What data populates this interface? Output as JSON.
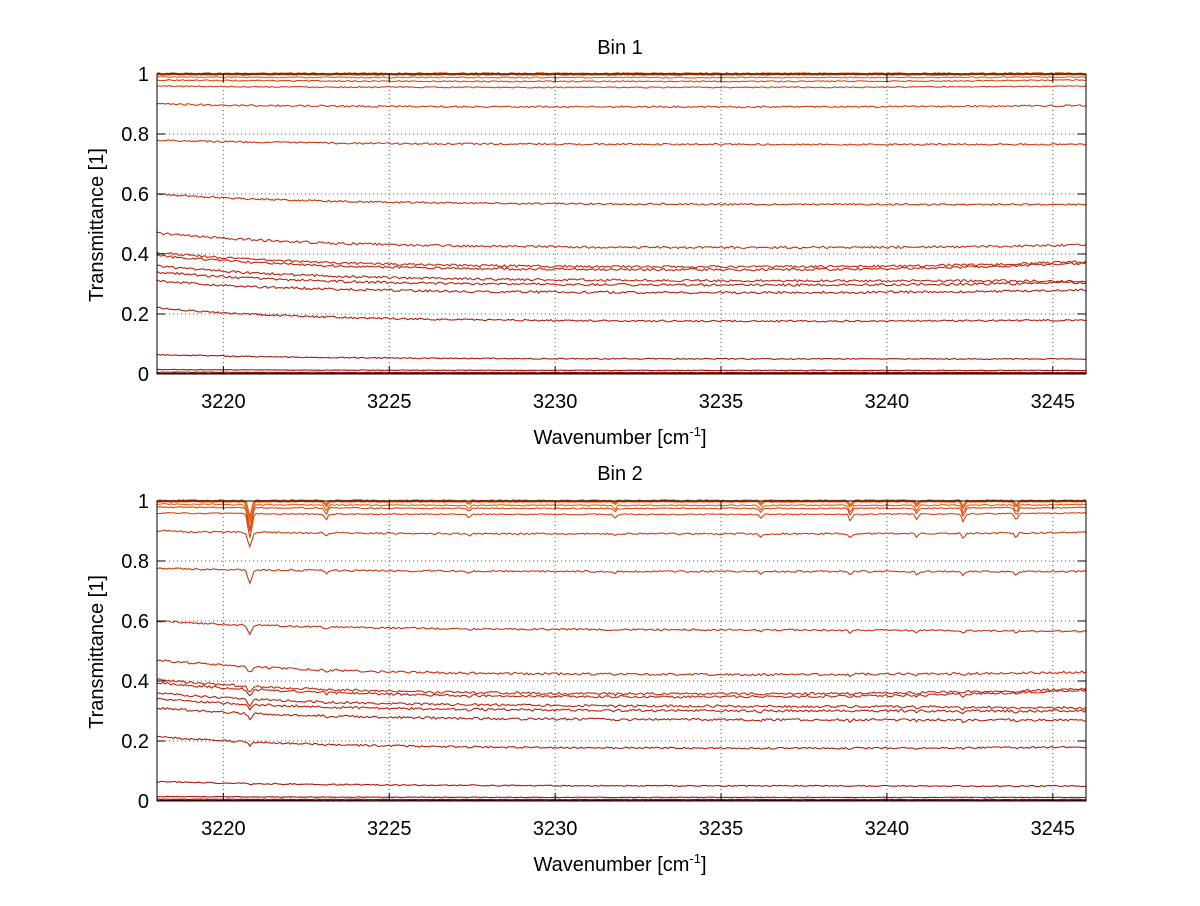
{
  "figure": {
    "background": "#ffffff"
  },
  "chart_data": [
    {
      "type": "line",
      "title": "Bin 1",
      "xlabel": "Wavenumber [cm",
      "xlabel_superscript": "-1",
      "xlabel_suffix": "]",
      "ylabel": "Transmittance [1]",
      "xlim": [
        3218,
        3246
      ],
      "ylim": [
        0,
        1
      ],
      "xticks": [
        3220,
        3225,
        3230,
        3235,
        3240,
        3245
      ],
      "xtick_labels": [
        "3220",
        "3225",
        "3230",
        "3235",
        "3240",
        "3245"
      ],
      "yticks": [
        0,
        0.2,
        0.4,
        0.6,
        0.8,
        1
      ],
      "ytick_labels": [
        "0",
        "0.2",
        "0.4",
        "0.6",
        "0.8",
        "1"
      ],
      "grid": true,
      "absorption_lines": [],
      "series": [
        {
          "color": "#e85a18",
          "start": 1.0,
          "mid": 1.0,
          "end": 1.0,
          "depth": 0.0,
          "noise": 0.002
        },
        {
          "color": "#f07020",
          "start": 0.998,
          "mid": 0.997,
          "end": 0.998,
          "depth": 0.0,
          "noise": 0.002
        },
        {
          "color": "#e0601a",
          "start": 0.99,
          "mid": 0.988,
          "end": 0.99,
          "depth": 0.0,
          "noise": 0.002
        },
        {
          "color": "#d44a14",
          "start": 0.98,
          "mid": 0.975,
          "end": 0.98,
          "depth": 0.0,
          "noise": 0.002
        },
        {
          "color": "#d44414",
          "start": 0.96,
          "mid": 0.955,
          "end": 0.96,
          "depth": 0.0,
          "noise": 0.002
        },
        {
          "color": "#cc3c12",
          "start": 0.9,
          "mid": 0.89,
          "end": 0.895,
          "depth": 0.0,
          "noise": 0.003
        },
        {
          "color": "#c83812",
          "start": 0.78,
          "mid": 0.765,
          "end": 0.765,
          "depth": 0.0,
          "noise": 0.003
        },
        {
          "color": "#c43210",
          "start": 0.6,
          "mid": 0.565,
          "end": 0.565,
          "depth": 0.0,
          "noise": 0.003
        },
        {
          "color": "#c22e10",
          "start": 0.47,
          "mid": 0.42,
          "end": 0.43,
          "depth": 0.0,
          "noise": 0.004
        },
        {
          "color": "#c02a0e",
          "start": 0.405,
          "mid": 0.355,
          "end": 0.375,
          "depth": 0.0,
          "noise": 0.004
        },
        {
          "color": "#bc260e",
          "start": 0.395,
          "mid": 0.345,
          "end": 0.37,
          "depth": 0.0,
          "noise": 0.004
        },
        {
          "color": "#ba240e",
          "start": 0.36,
          "mid": 0.31,
          "end": 0.31,
          "depth": 0.0,
          "noise": 0.004
        },
        {
          "color": "#b6220c",
          "start": 0.34,
          "mid": 0.295,
          "end": 0.305,
          "depth": 0.0,
          "noise": 0.004
        },
        {
          "color": "#b4200c",
          "start": 0.31,
          "mid": 0.27,
          "end": 0.28,
          "depth": 0.0,
          "noise": 0.004
        },
        {
          "color": "#b01e0c",
          "start": 0.22,
          "mid": 0.175,
          "end": 0.18,
          "depth": 0.0,
          "noise": 0.003
        },
        {
          "color": "#a81a0a",
          "start": 0.065,
          "mid": 0.05,
          "end": 0.05,
          "depth": 0.0,
          "noise": 0.002
        },
        {
          "color": "#a0160a",
          "start": 0.015,
          "mid": 0.012,
          "end": 0.012,
          "depth": 0.0,
          "noise": 0.001
        },
        {
          "color": "#8a1008",
          "start": 0.006,
          "mid": 0.005,
          "end": 0.005,
          "depth": 0.0,
          "noise": 0.001
        },
        {
          "color": "#7a0c06",
          "start": 0.002,
          "mid": 0.002,
          "end": 0.002,
          "depth": 0.0,
          "noise": 0.001
        }
      ]
    },
    {
      "type": "line",
      "title": "Bin 2",
      "xlabel": "Wavenumber [cm",
      "xlabel_superscript": "-1",
      "xlabel_suffix": "]",
      "ylabel": "Transmittance [1]",
      "xlim": [
        3218,
        3246
      ],
      "ylim": [
        0,
        1
      ],
      "xticks": [
        3220,
        3225,
        3230,
        3235,
        3240,
        3245
      ],
      "xtick_labels": [
        "3220",
        "3225",
        "3230",
        "3235",
        "3240",
        "3245"
      ],
      "yticks": [
        0,
        0.2,
        0.4,
        0.6,
        0.8,
        1
      ],
      "ytick_labels": [
        "0",
        "0.2",
        "0.4",
        "0.6",
        "0.8",
        "1"
      ],
      "grid": true,
      "absorption_lines": [
        {
          "x": 3220.8,
          "strength": 1.0,
          "width": 0.08
        },
        {
          "x": 3223.1,
          "strength": 0.25,
          "width": 0.06
        },
        {
          "x": 3227.4,
          "strength": 0.15,
          "width": 0.06
        },
        {
          "x": 3231.8,
          "strength": 0.15,
          "width": 0.06
        },
        {
          "x": 3236.2,
          "strength": 0.18,
          "width": 0.06
        },
        {
          "x": 3238.9,
          "strength": 0.3,
          "width": 0.06
        },
        {
          "x": 3240.9,
          "strength": 0.22,
          "width": 0.06
        },
        {
          "x": 3242.3,
          "strength": 0.35,
          "width": 0.06
        },
        {
          "x": 3243.9,
          "strength": 0.3,
          "width": 0.06
        }
      ],
      "series": [
        {
          "color": "#e85a18",
          "start": 1.0,
          "mid": 1.0,
          "end": 1.0,
          "depth": 0.06,
          "noise": 0.002
        },
        {
          "color": "#f07020",
          "start": 0.998,
          "mid": 0.997,
          "end": 0.998,
          "depth": 0.07,
          "noise": 0.002
        },
        {
          "color": "#e0601a",
          "start": 0.99,
          "mid": 0.985,
          "end": 0.988,
          "depth": 0.08,
          "noise": 0.002
        },
        {
          "color": "#d44a14",
          "start": 0.98,
          "mid": 0.975,
          "end": 0.978,
          "depth": 0.08,
          "noise": 0.002
        },
        {
          "color": "#d44414",
          "start": 0.96,
          "mid": 0.955,
          "end": 0.96,
          "depth": 0.08,
          "noise": 0.002
        },
        {
          "color": "#cc3c12",
          "start": 0.9,
          "mid": 0.89,
          "end": 0.895,
          "depth": 0.05,
          "noise": 0.003
        },
        {
          "color": "#c83812",
          "start": 0.775,
          "mid": 0.765,
          "end": 0.765,
          "depth": 0.045,
          "noise": 0.003
        },
        {
          "color": "#c43210",
          "start": 0.6,
          "mid": 0.57,
          "end": 0.565,
          "depth": 0.03,
          "noise": 0.003
        },
        {
          "color": "#c22e10",
          "start": 0.47,
          "mid": 0.42,
          "end": 0.43,
          "depth": 0.02,
          "noise": 0.004
        },
        {
          "color": "#c02a0e",
          "start": 0.405,
          "mid": 0.355,
          "end": 0.375,
          "depth": 0.02,
          "noise": 0.004
        },
        {
          "color": "#bc260e",
          "start": 0.395,
          "mid": 0.345,
          "end": 0.37,
          "depth": 0.02,
          "noise": 0.004
        },
        {
          "color": "#ba240e",
          "start": 0.36,
          "mid": 0.315,
          "end": 0.31,
          "depth": 0.02,
          "noise": 0.004
        },
        {
          "color": "#b6220c",
          "start": 0.34,
          "mid": 0.3,
          "end": 0.3,
          "depth": 0.02,
          "noise": 0.004
        },
        {
          "color": "#b4200c",
          "start": 0.31,
          "mid": 0.27,
          "end": 0.27,
          "depth": 0.02,
          "noise": 0.004
        },
        {
          "color": "#b01e0c",
          "start": 0.215,
          "mid": 0.175,
          "end": 0.18,
          "depth": 0.012,
          "noise": 0.003
        },
        {
          "color": "#a81a0a",
          "start": 0.065,
          "mid": 0.05,
          "end": 0.05,
          "depth": 0.004,
          "noise": 0.002
        },
        {
          "color": "#a0160a",
          "start": 0.015,
          "mid": 0.012,
          "end": 0.012,
          "depth": 0.001,
          "noise": 0.001
        },
        {
          "color": "#8a1008",
          "start": 0.006,
          "mid": 0.005,
          "end": 0.005,
          "depth": 0.0,
          "noise": 0.001
        },
        {
          "color": "#7a0c06",
          "start": 0.002,
          "mid": 0.002,
          "end": 0.002,
          "depth": 0.0,
          "noise": 0.001
        }
      ]
    }
  ]
}
